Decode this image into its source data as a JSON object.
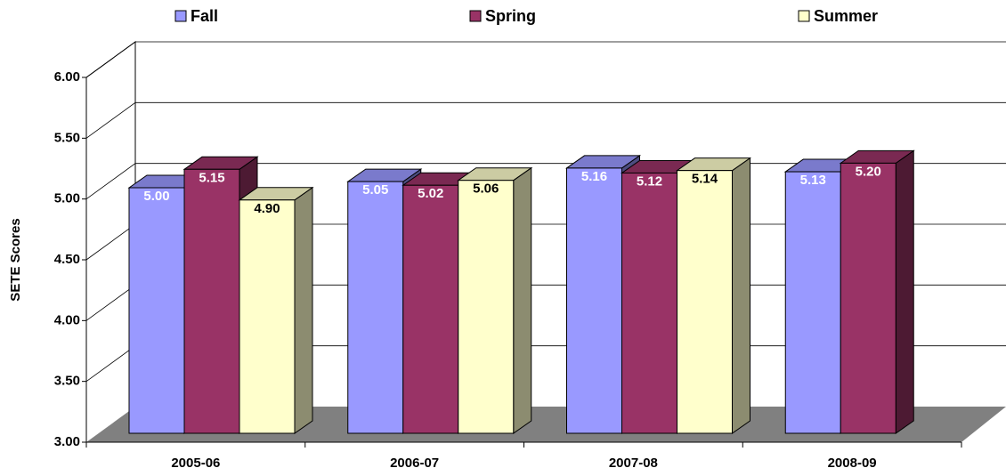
{
  "chart_data": {
    "type": "bar3d",
    "y_label": "SETE Scores",
    "categories": [
      "2005-06",
      "2006-07",
      "2007-08",
      "2008-09"
    ],
    "series": [
      {
        "name": "Fall",
        "color": "#9999ff",
        "values": [
          5.0,
          5.05,
          5.16,
          5.13
        ],
        "value_labels": [
          "5.00",
          "5.05",
          "5.16",
          "5.13"
        ]
      },
      {
        "name": "Spring",
        "color": "#993366",
        "values": [
          5.15,
          5.02,
          5.12,
          5.2
        ],
        "value_labels": [
          "5.15",
          "5.02",
          "5.12",
          "5.20"
        ]
      },
      {
        "name": "Summer",
        "color": "#ffffcc",
        "values": [
          4.9,
          5.06,
          5.14,
          null
        ],
        "value_labels": [
          "4.90",
          "5.06",
          "5.14",
          null
        ]
      }
    ],
    "ylim": [
      3,
      6
    ],
    "yticks": [
      {
        "value": 3,
        "label": "3.00"
      },
      {
        "value": 3.5,
        "label": "3.50"
      },
      {
        "value": 4,
        "label": "4.00"
      },
      {
        "value": 4.5,
        "label": "4.50"
      },
      {
        "value": 5,
        "label": "5.00"
      },
      {
        "value": 5.5,
        "label": "5.50"
      },
      {
        "value": 6,
        "label": "6.00"
      }
    ],
    "grid": true,
    "legend": "top"
  }
}
